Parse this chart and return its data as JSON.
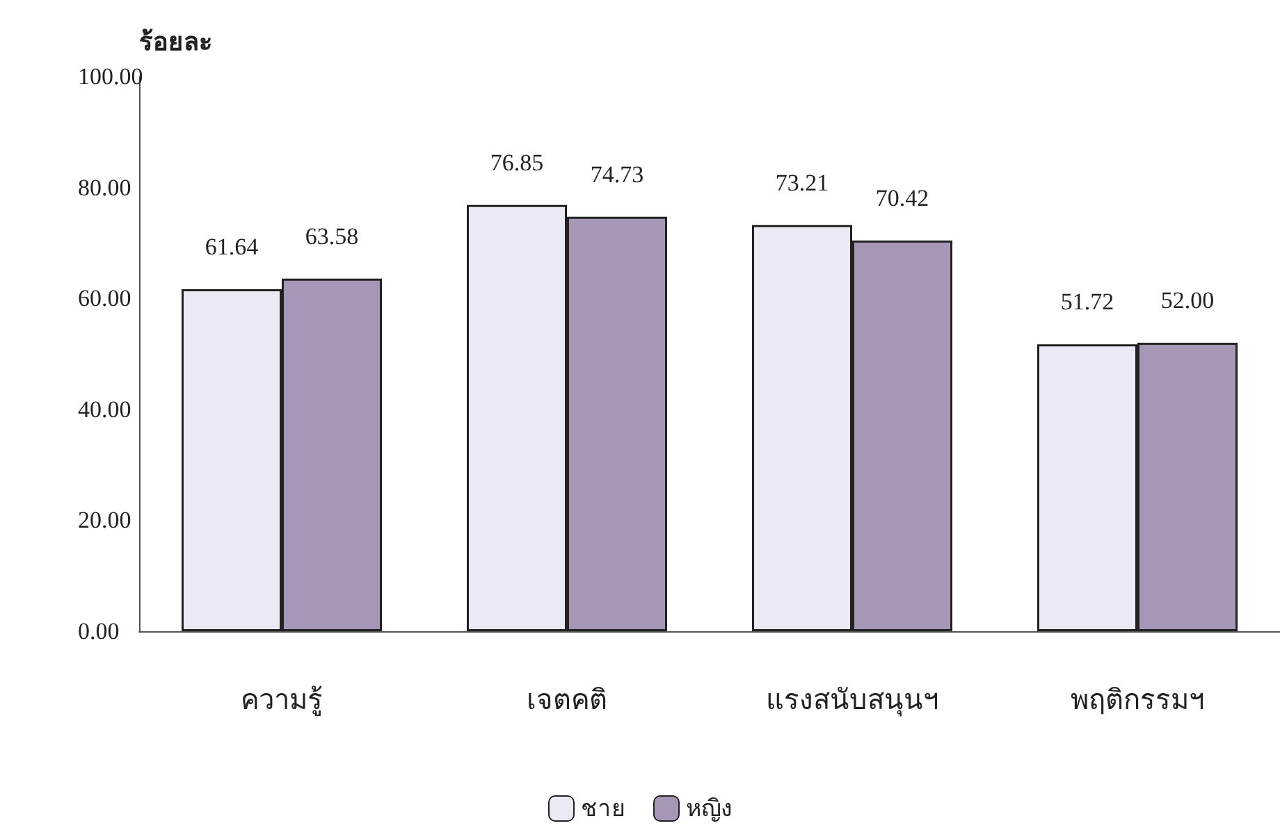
{
  "chart_data": {
    "type": "bar",
    "ylabel": "ร้อยละ",
    "categories": [
      "ความรู้",
      "เจตคติ",
      "แรงสนับสนุนฯ",
      "พฤติกรรมฯ"
    ],
    "series": [
      {
        "name": "ชาย",
        "color": "#ebeaf4",
        "values": [
          61.64,
          76.85,
          73.21,
          51.72
        ],
        "value_labels": [
          "61.64",
          "76.85",
          "73.21",
          "51.72"
        ]
      },
      {
        "name": "หญิง",
        "color": "#a797b7",
        "values": [
          63.58,
          74.73,
          70.42,
          52.0
        ],
        "value_labels": [
          "63.58",
          "74.73",
          "70.42",
          "52.00"
        ]
      }
    ],
    "ylim": [
      0,
      100
    ],
    "yticks": [
      {
        "value": 0,
        "label": "0.00"
      },
      {
        "value": 20,
        "label": "20.00"
      },
      {
        "value": 40,
        "label": "40.00"
      },
      {
        "value": 60,
        "label": "60.00"
      },
      {
        "value": 80,
        "label": "80.00"
      },
      {
        "value": 100,
        "label": "100.00"
      }
    ],
    "grid": false,
    "legend": "bottom"
  }
}
